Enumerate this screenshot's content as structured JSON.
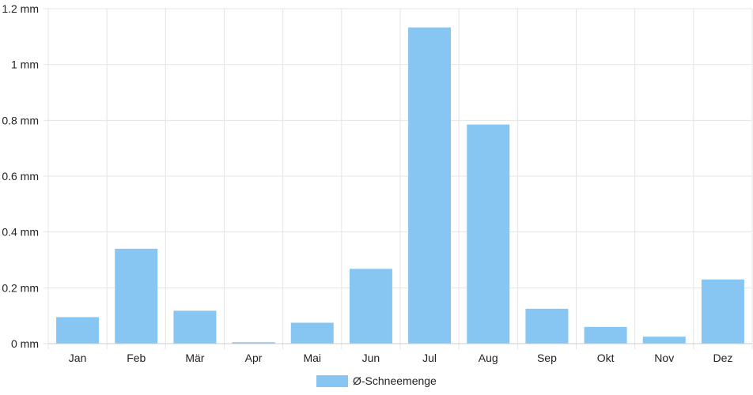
{
  "chart_data": {
    "type": "bar",
    "categories": [
      "Jan",
      "Feb",
      "Mär",
      "Apr",
      "Mai",
      "Jun",
      "Jul",
      "Aug",
      "Sep",
      "Okt",
      "Nov",
      "Dez"
    ],
    "series": [
      {
        "name": "Ø-Schneemenge",
        "values": [
          0.095,
          0.34,
          0.118,
          0.005,
          0.075,
          0.268,
          1.133,
          0.785,
          0.125,
          0.06,
          0.025,
          0.23
        ],
        "color": "#87c6f2"
      }
    ],
    "y_ticks": [
      "0 mm",
      "0.2 mm",
      "0.4 mm",
      "0.6 mm",
      "0.8 mm",
      "1 mm",
      "1.2 mm"
    ],
    "ylim": [
      0,
      1.2
    ],
    "unit": "mm",
    "grid": true,
    "legend_position": "bottom-center",
    "colors": {
      "grid": "#e4e4e4",
      "axis": "#cccccc",
      "text": "#222222"
    }
  }
}
